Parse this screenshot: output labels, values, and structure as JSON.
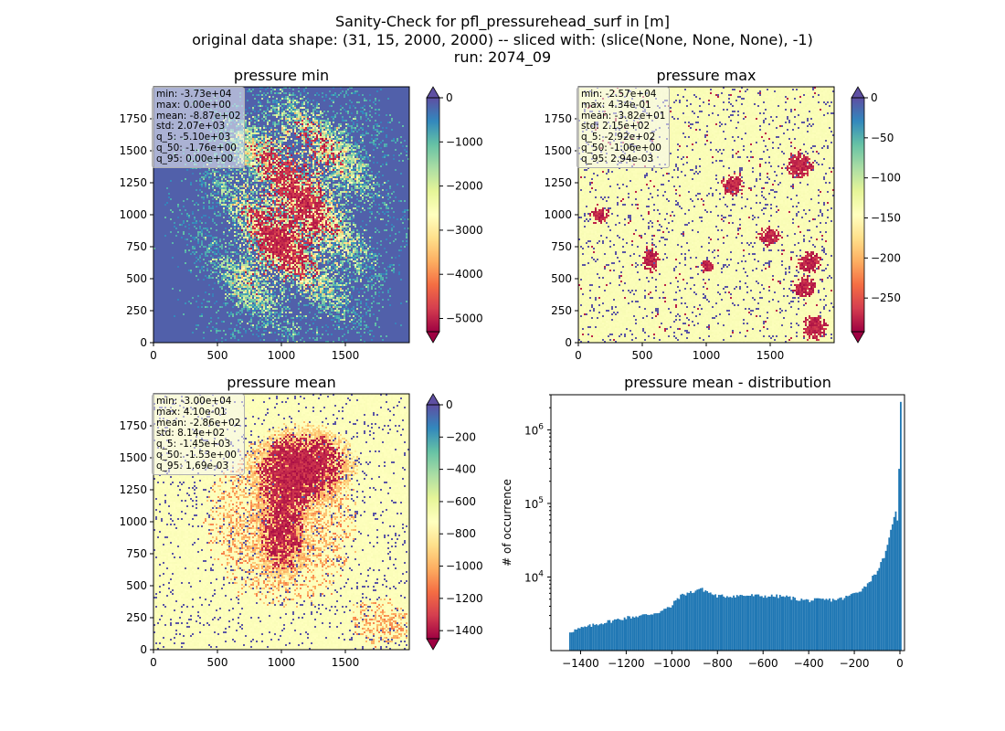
{
  "figure": {
    "title_lines": [
      "Sanity-Check for pfl_pressurehead_surf in [m]",
      "original data shape: (31, 15, 2000, 2000) -- sliced with: (slice(None, None, None), -1)",
      "run: 2074_09"
    ]
  },
  "colormap": {
    "name": "Spectral",
    "stops": [
      "#9e0142",
      "#d53e4f",
      "#f46d43",
      "#fdae61",
      "#fee08b",
      "#ffffbf",
      "#e6f598",
      "#abdda4",
      "#66c2a5",
      "#3288bd",
      "#5e4fa2"
    ]
  },
  "panels": {
    "pmin": {
      "title": "pressure min",
      "xticks": [
        "0",
        "500",
        "1000",
        "1500"
      ],
      "yticks": [
        "0",
        "250",
        "500",
        "750",
        "1000",
        "1250",
        "1500",
        "1750"
      ],
      "cbar_ticks": [
        "0",
        "−1000",
        "−2000",
        "−3000",
        "−4000",
        "−5000"
      ],
      "cbar_range": [
        -5300,
        0
      ],
      "stats": [
        "min: -3.73e+04",
        "max: 0.00e+00",
        "mean: -8.87e+02",
        "std: 2.07e+03",
        "q_5: -5.10e+03",
        "q_50: -1.76e+00",
        "q_95: 0.00e+00"
      ]
    },
    "pmax": {
      "title": "pressure max",
      "xticks": [
        "0",
        "500",
        "1000",
        "1500"
      ],
      "yticks": [
        "0",
        "250",
        "500",
        "750",
        "1000",
        "1250",
        "1500",
        "1750"
      ],
      "cbar_ticks": [
        "0",
        "−50",
        "−100",
        "−150",
        "−200",
        "−250"
      ],
      "cbar_range": [
        -292,
        0
      ],
      "stats": [
        "min: -2.57e+04",
        "max: 4.34e-01",
        "mean: -3.82e+01",
        "std: 2.15e+02",
        "q_5: -2.92e+02",
        "q_50: -1.06e+00",
        "q_95: 2.94e-03"
      ]
    },
    "pmean": {
      "title": "pressure mean",
      "xticks": [
        "0",
        "500",
        "1000",
        "1500"
      ],
      "yticks": [
        "0",
        "250",
        "500",
        "750",
        "1000",
        "1250",
        "1500",
        "1750"
      ],
      "cbar_ticks": [
        "0",
        "−200",
        "−400",
        "−600",
        "−800",
        "−1000",
        "−1200",
        "−1400"
      ],
      "cbar_range": [
        -1450,
        0
      ],
      "stats": [
        "min: -3.00e+04",
        "max: 4.10e-01",
        "mean: -2.86e+02",
        "std: 8.14e+02",
        "q_5: -1.45e+03",
        "q_50: -1.53e+00",
        "q_95: 1.69e-03"
      ]
    }
  },
  "chart_data": [
    {
      "type": "heatmap",
      "title": "pressure min",
      "xlim": [
        0,
        2000
      ],
      "ylim": [
        0,
        2000
      ],
      "colorbar_range": [
        -5300,
        0
      ],
      "colormap": "Spectral",
      "colorbar_extend": "both"
    },
    {
      "type": "heatmap",
      "title": "pressure max",
      "xlim": [
        0,
        2000
      ],
      "ylim": [
        0,
        2000
      ],
      "colorbar_range": [
        -292,
        0
      ],
      "colormap": "Spectral",
      "colorbar_extend": "both"
    },
    {
      "type": "heatmap",
      "title": "pressure mean",
      "xlim": [
        0,
        2000
      ],
      "ylim": [
        0,
        2000
      ],
      "colorbar_range": [
        -1450,
        0
      ],
      "colormap": "Spectral",
      "colorbar_extend": "both"
    },
    {
      "type": "bar",
      "title": "pressure mean - distribution",
      "xlabel": "",
      "ylabel": "# of occurrence",
      "xlim": [
        -1530,
        20
      ],
      "ylim": [
        1000,
        3000000
      ],
      "yscale": "log",
      "xticks": [
        "−1400",
        "−1200",
        "−1000",
        "−800",
        "−600",
        "−400",
        "−200",
        "0"
      ],
      "yticks": [
        "10^4",
        "10^5",
        "10^6"
      ],
      "color": "#1f77b4",
      "bin_width": 7.25,
      "bins": [
        [
          -1450,
          1800
        ],
        [
          -1400,
          2000
        ],
        [
          -1300,
          2400
        ],
        [
          -1200,
          2800
        ],
        [
          -1100,
          3100
        ],
        [
          -1050,
          3400
        ],
        [
          -1000,
          4000
        ],
        [
          -980,
          5000
        ],
        [
          -950,
          5800
        ],
        [
          -900,
          6400
        ],
        [
          -880,
          7000
        ],
        [
          -850,
          6500
        ],
        [
          -820,
          5800
        ],
        [
          -800,
          5500
        ],
        [
          -750,
          5500
        ],
        [
          -700,
          5600
        ],
        [
          -650,
          5600
        ],
        [
          -600,
          5500
        ],
        [
          -550,
          5500
        ],
        [
          -500,
          5400
        ],
        [
          -450,
          5000
        ],
        [
          -400,
          4800
        ],
        [
          -350,
          4900
        ],
        [
          -300,
          4900
        ],
        [
          -250,
          5100
        ],
        [
          -220,
          5600
        ],
        [
          -200,
          6000
        ],
        [
          -160,
          7000
        ],
        [
          -130,
          9000
        ],
        [
          -100,
          12000
        ],
        [
          -80,
          16000
        ],
        [
          -60,
          22000
        ],
        [
          -45,
          35000
        ],
        [
          -30,
          60000
        ],
        [
          -20,
          80000
        ],
        [
          -10,
          55000
        ],
        [
          -5,
          52000
        ],
        [
          -2,
          2400000
        ],
        [
          2,
          6000
        ],
        [
          6,
          1000
        ]
      ]
    }
  ]
}
